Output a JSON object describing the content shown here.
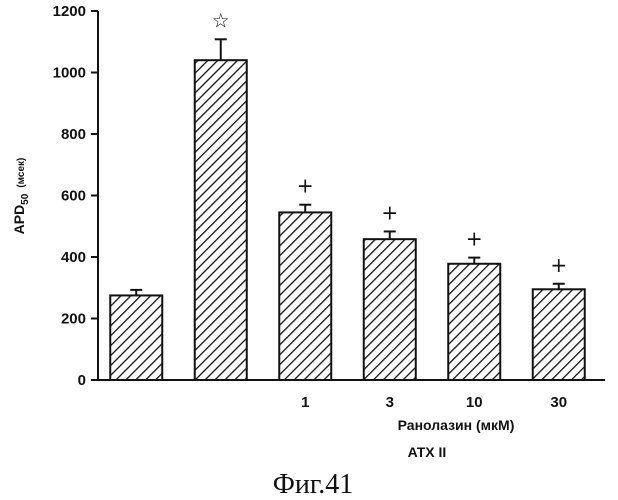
{
  "chart_data": {
    "type": "bar",
    "categories": [
      "",
      "",
      "1",
      "3",
      "10",
      "30"
    ],
    "values": [
      275,
      1040,
      545,
      458,
      378,
      295
    ],
    "errors": [
      18,
      68,
      25,
      25,
      20,
      18
    ],
    "markers": [
      "",
      "☆",
      "+",
      "+",
      "+",
      "+"
    ],
    "ylim": [
      0,
      1200
    ],
    "yticks": [
      0,
      200,
      400,
      600,
      800,
      1000,
      1200
    ],
    "ylabel": "APD",
    "ylabel_sub": "50",
    "ylabel_unit": "(мсек)",
    "xlabel": "Ранолазин (мкМ)",
    "xlabel2": "ATX  II",
    "pattern": "diagonal-hatch",
    "bar_color": "#111111"
  },
  "caption": "Фиг.41"
}
